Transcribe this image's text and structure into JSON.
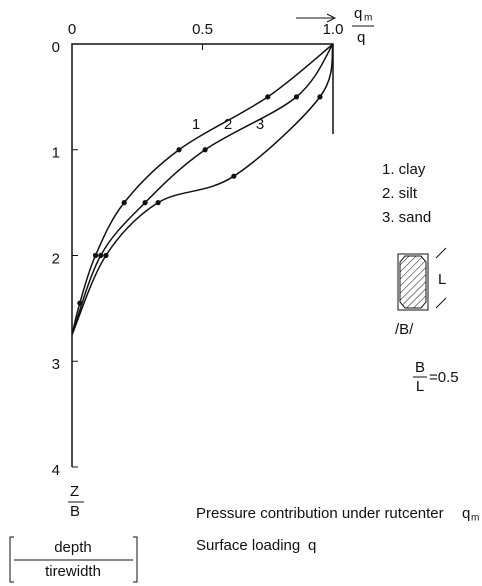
{
  "chart_data": {
    "type": "line",
    "x_label": {
      "num": "q",
      "num_sub": "m",
      "den": "q"
    },
    "y_label": {
      "num": "Z",
      "den": "B",
      "bracket_num": "depth",
      "bracket_den": "tirewidth"
    },
    "xlim": [
      0,
      1
    ],
    "xticks": [
      0,
      0.5,
      {
        "value": 1,
        "label": "1.0"
      }
    ],
    "ylim": [
      0,
      4
    ],
    "yticks": [
      0,
      1,
      2,
      3,
      4
    ],
    "y_inverted": true,
    "series": [
      {
        "name": "1. clay",
        "label": "1",
        "color": "#111",
        "x": [
          1,
          0.75,
          0.41,
          0.2,
          0.09,
          0.03,
          0
        ],
        "values": [
          0,
          0.5,
          1,
          1.5,
          2,
          2.45,
          2.75
        ]
      },
      {
        "name": "2. silt",
        "label": "2",
        "color": "#111",
        "x": [
          1,
          0.86,
          0.51,
          0.28,
          0.11,
          0
        ],
        "values": [
          0,
          0.5,
          1,
          1.5,
          2,
          2.75
        ]
      },
      {
        "name": "3. sand",
        "label": "3",
        "color": "#111",
        "x": [
          1,
          0.95,
          0.62,
          0.33,
          0.13,
          0
        ],
        "values": [
          0,
          0.5,
          1.25,
          1.5,
          2,
          2.75
        ]
      }
    ],
    "tire": {
      "l": "L",
      "b": "/B/",
      "ratio_num": "B",
      "ratio_den": "L",
      "ratio_value": "=0.5"
    },
    "notes": {
      "line1": "Pressure contribution under rutcenter",
      "line1_symbol": "q",
      "line1_sub": "m",
      "line2": "Surface loading",
      "line2_symbol": "q"
    }
  }
}
